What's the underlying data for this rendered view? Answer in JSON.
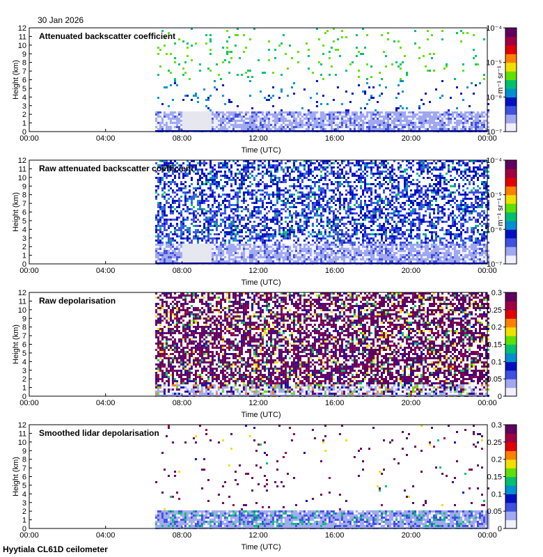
{
  "header": {
    "date": "30 Jan 2026",
    "footer": "Hyytiala CL61D ceilometer"
  },
  "colors": {
    "panel_bg": "#ffffff",
    "axis": "#000000",
    "colormap": [
      "#f0f0ff",
      "#a0a8f0",
      "#4050e0",
      "#0010c0",
      "#0090d0",
      "#00c070",
      "#60e000",
      "#f0e000",
      "#ff8000",
      "#e00000",
      "#a00040",
      "#600060"
    ]
  },
  "chart_data": [
    {
      "type": "heatmap",
      "title": "Attenuated backscatter coefficient",
      "xlabel": "Time (UTC)",
      "ylabel": "Height (km)",
      "x_ticks": [
        "00:00",
        "04:00",
        "08:00",
        "12:00",
        "16:00",
        "20:00",
        "00:00"
      ],
      "y_ticks": [
        "0",
        "1",
        "2",
        "3",
        "4",
        "5",
        "6",
        "7",
        "8",
        "9",
        "10",
        "11",
        "12"
      ],
      "ylim": [
        0,
        12
      ],
      "colorbar": {
        "scale": "log",
        "ticks": [
          "10⁻⁷",
          "10⁻⁶",
          "10⁻⁵",
          "10⁻⁴"
        ],
        "unit": "m⁻¹ sr⁻¹"
      },
      "data_start_hour": 6.6,
      "gap_hours": [
        8.0,
        9.5
      ],
      "boundary_layer_top_km": 2.5,
      "noise_density": 0.05
    },
    {
      "type": "heatmap",
      "title": "Raw attenuated backscatter coefficient",
      "xlabel": "Time (UTC)",
      "ylabel": "Height (km)",
      "x_ticks": [
        "00:00",
        "04:00",
        "08:00",
        "12:00",
        "16:00",
        "20:00",
        "00:00"
      ],
      "y_ticks": [
        "0",
        "1",
        "2",
        "3",
        "4",
        "5",
        "6",
        "7",
        "8",
        "9",
        "10",
        "11",
        "12"
      ],
      "ylim": [
        0,
        12
      ],
      "colorbar": {
        "scale": "log",
        "ticks": [
          "10⁻⁷",
          "10⁻⁶",
          "10⁻⁵",
          "10⁻⁴"
        ],
        "unit": "m⁻¹ sr⁻¹"
      },
      "data_start_hour": 6.6,
      "gap_hours": [
        8.0,
        9.5
      ],
      "boundary_layer_top_km": 2.5,
      "noise_density": 0.55
    },
    {
      "type": "heatmap",
      "title": "Raw depolarisation",
      "xlabel": "Time (UTC)",
      "ylabel": "Height (km)",
      "x_ticks": [
        "00:00",
        "04:00",
        "08:00",
        "12:00",
        "16:00",
        "20:00",
        "00:00"
      ],
      "y_ticks": [
        "0",
        "1",
        "2",
        "3",
        "4",
        "5",
        "6",
        "7",
        "8",
        "9",
        "10",
        "11",
        "12"
      ],
      "ylim": [
        0,
        12
      ],
      "colorbar": {
        "scale": "linear",
        "ticks": [
          "0",
          "0.05",
          "0.1",
          "0.15",
          "0.2",
          "0.25",
          "0.3"
        ],
        "unit": ""
      },
      "data_start_hour": 6.6,
      "gap_hours": [],
      "boundary_layer_top_km": 1.5,
      "noise_density": 0.7
    },
    {
      "type": "heatmap",
      "title": "Smoothed lidar depolarisation",
      "xlabel": "Time (UTC)",
      "ylabel": "Height (km)",
      "x_ticks": [
        "00:00",
        "04:00",
        "08:00",
        "12:00",
        "16:00",
        "20:00",
        "00:00"
      ],
      "y_ticks": [
        "0",
        "1",
        "2",
        "3",
        "4",
        "5",
        "6",
        "7",
        "8",
        "9",
        "10",
        "11",
        "12"
      ],
      "ylim": [
        0,
        12
      ],
      "colorbar": {
        "scale": "linear",
        "ticks": [
          "0",
          "0.05",
          "0.1",
          "0.15",
          "0.2",
          "0.25",
          "0.3"
        ],
        "unit": ""
      },
      "data_start_hour": 6.6,
      "gap_hours": [],
      "boundary_layer_top_km": 2.3,
      "noise_density": 0.03
    }
  ]
}
